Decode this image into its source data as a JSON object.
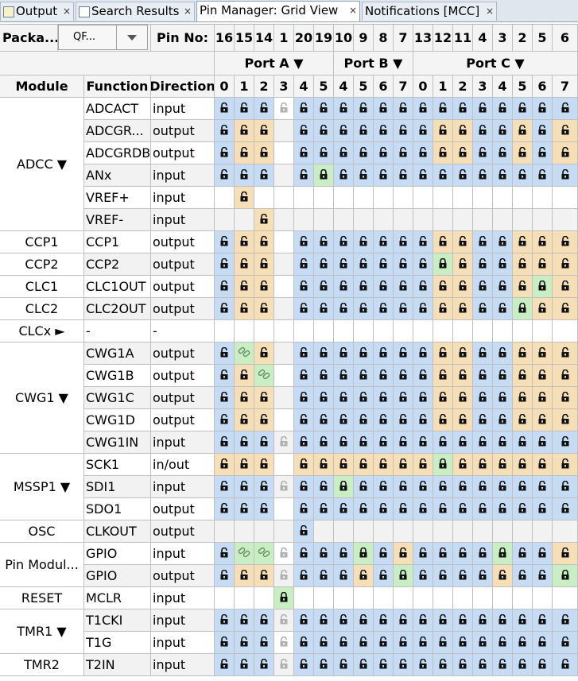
{
  "tabs": [
    {
      "label": "Output",
      "icon": "output-window-icon",
      "active": false
    },
    {
      "label": "Search Results",
      "icon": "search-results-icon",
      "active": false
    },
    {
      "label": "Pin Manager: Grid View",
      "icon": "",
      "active": true
    },
    {
      "label": "Notifications [MCC]",
      "icon": "",
      "active": false
    }
  ],
  "close_glyph": "×",
  "header": {
    "package_label": "Packa...",
    "package_value": "QF...",
    "pin_no_label": "Pin No:",
    "pin_numbers": [
      "16",
      "15",
      "14",
      "1",
      "20",
      "19",
      "10",
      "9",
      "8",
      "7",
      "13",
      "12",
      "11",
      "4",
      "3",
      "2",
      "5",
      "6"
    ],
    "ports": [
      {
        "label": "Port A ▼"
      },
      {
        "label": "Port B ▼"
      },
      {
        "label": "Port C ▼"
      }
    ],
    "module_label": "Module",
    "function_label": "Function",
    "direction_label": "Direction",
    "bits": [
      "0",
      "1",
      "2",
      "3",
      "4",
      "5",
      "4",
      "5",
      "6",
      "7",
      "0",
      "1",
      "2",
      "3",
      "4",
      "5",
      "6",
      "7"
    ]
  },
  "modules": [
    {
      "label": "ADCC ▼",
      "rows": 6
    },
    {
      "label": "CCP1",
      "rows": 1
    },
    {
      "label": "CCP2",
      "rows": 1
    },
    {
      "label": "CLC1",
      "rows": 1
    },
    {
      "label": "CLC2",
      "rows": 1
    },
    {
      "label": "CLCx ►",
      "rows": 1
    },
    {
      "label": "CWG1 ▼",
      "rows": 5
    },
    {
      "label": "MSSP1 ▼",
      "rows": 3
    },
    {
      "label": "OSC",
      "rows": 1
    },
    {
      "label": "Pin Modul...",
      "rows": 2
    },
    {
      "label": "RESET",
      "rows": 1
    },
    {
      "label": "TMR1 ▼",
      "rows": 2
    },
    {
      "label": "TMR2",
      "rows": 1
    }
  ],
  "rows": [
    {
      "function": "ADCACT",
      "direction": "input",
      "cells": "bbbdbbbbbbbbbbbbbb"
    },
    {
      "function": "ADCGR...",
      "direction": "output",
      "cells": "boo.bbbbbbboobbobo"
    },
    {
      "function": "ADCGRDB",
      "direction": "output",
      "cells": "boo.bbbbbbboobbobo"
    },
    {
      "function": "ANx",
      "direction": "input",
      "cells": "bbb.bGbbbbbbbbbbbb"
    },
    {
      "function": "VREF+",
      "direction": "input",
      "cells": ".o................"
    },
    {
      "function": "VREF-",
      "direction": "input",
      "cells": "..o..............."
    },
    {
      "function": "CCP1",
      "direction": "output",
      "cells": "boo.bbbbbbboobbooo"
    },
    {
      "function": "CCP2",
      "direction": "output",
      "cells": "boo.bbbbbbbGobbooo"
    },
    {
      "function": "CLC1OUT",
      "direction": "output",
      "cells": "boo.bbbbbbboobboGo"
    },
    {
      "function": "CLC2OUT",
      "direction": "output",
      "cells": "boo.bbbbbbboobbGoo"
    },
    {
      "function": "-",
      "direction": "-",
      "cells": ".................."
    },
    {
      "function": "CWG1A",
      "direction": "output",
      "cells": "bLo.bbbbbbboobbooo"
    },
    {
      "function": "CWG1B",
      "direction": "output",
      "cells": "boL.bbbbbbboobbooo"
    },
    {
      "function": "CWG1C",
      "direction": "output",
      "cells": "boo.bbbbbbboobbooo"
    },
    {
      "function": "CWG1D",
      "direction": "output",
      "cells": "boo.bbbbbbboobbooo"
    },
    {
      "function": "CWG1IN",
      "direction": "input",
      "cells": "bbbdbbbbbbbbbbbbbb"
    },
    {
      "function": "SCK1",
      "direction": "in/out",
      "cells": "ooo.oooooooGoooooo"
    },
    {
      "function": "SDI1",
      "direction": "input",
      "cells": "bbbdbbGbbbbbbbbbbb"
    },
    {
      "function": "SDO1",
      "direction": "output",
      "cells": "bbb.bbbbbbbbbbbbbb"
    },
    {
      "function": "CLKOUT",
      "direction": "output",
      "cells": "....b............."
    },
    {
      "function": "GPIO",
      "direction": "input",
      "cells": "bLLdbbbGbobbbbGbbo"
    },
    {
      "function": "GPIO",
      "direction": "output",
      "cells": "boodbbbobGbbbbobbG"
    },
    {
      "function": "MCLR",
      "direction": "input",
      "cells": "...G.............."
    },
    {
      "function": "T1CKI",
      "direction": "input",
      "cells": "bbbdbbbbbbbbbbbbbb"
    },
    {
      "function": "T1G",
      "direction": "input",
      "cells": "bbbdbbbbbbbbbbbbbb"
    },
    {
      "function": "T2IN",
      "direction": "input",
      "cells": "bbbdbbbbbbbbbbbbbb"
    }
  ],
  "cell_legend": {
    "b": "unlocked-available",
    "o": "unlocked-output",
    "G": "locked-selected",
    "L": "linked-chain",
    "d": "disabled-lock",
    ".": "empty"
  },
  "colors": {
    "available": "#c5dcf4",
    "output": "#f6dfb7",
    "selected": "#c9eec4",
    "lock": "#111111",
    "disabled_lock": "#b0b0b0"
  }
}
